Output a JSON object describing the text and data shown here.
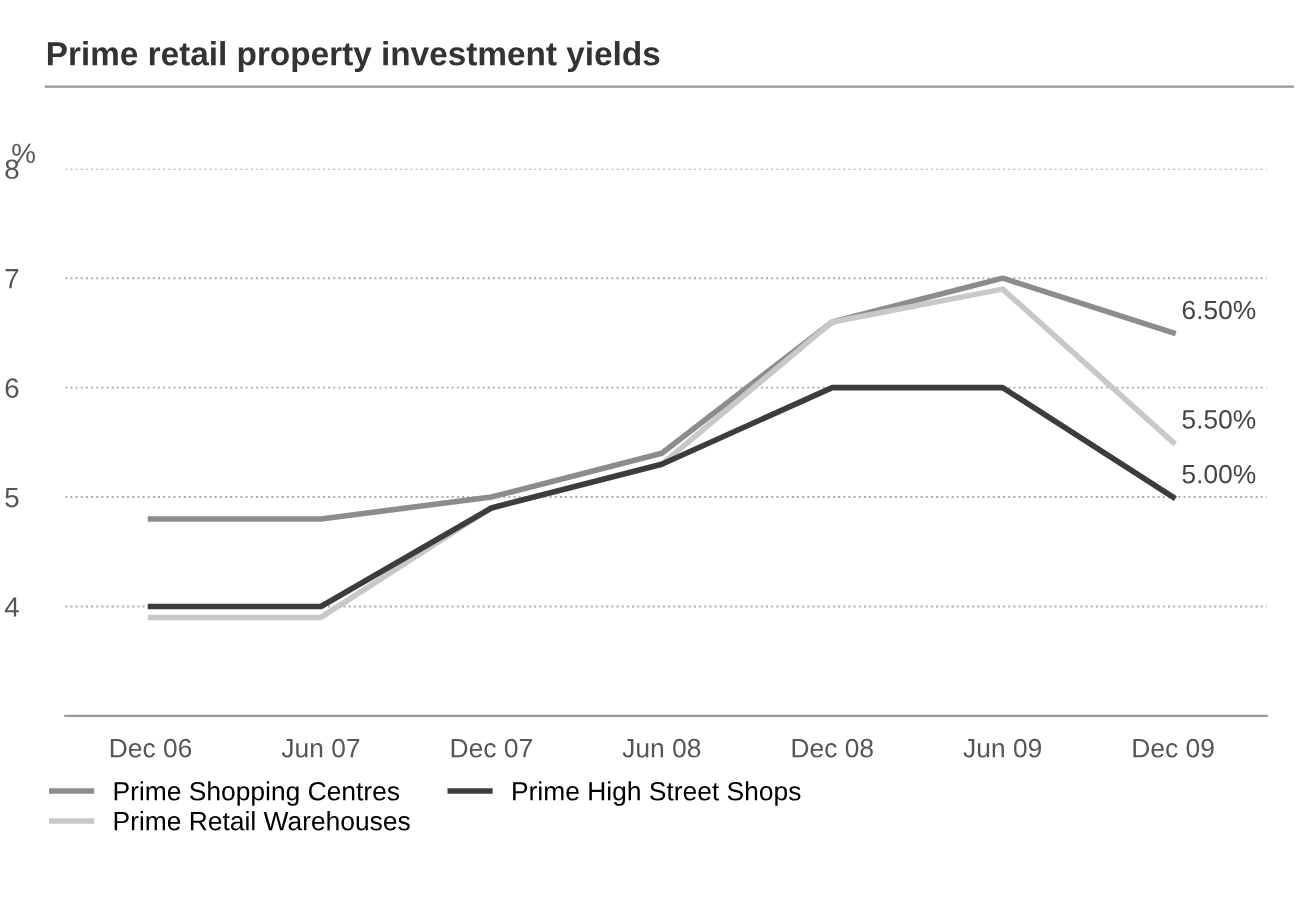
{
  "chart_data": {
    "type": "line",
    "title": "Prime retail property investment yields",
    "ylabel": "%",
    "categories": [
      "Dec 06",
      "Jun 07",
      "Dec 07",
      "Jun 08",
      "Dec 08",
      "Jun 09",
      "Dec 09"
    ],
    "series": [
      {
        "name": "Prime Shopping Centres",
        "color": "#8c8c8c",
        "values": [
          4.8,
          4.8,
          5.0,
          5.4,
          6.6,
          7.0,
          6.5
        ],
        "value_labels": [
          null,
          null,
          null,
          null,
          null,
          null,
          "6.50%"
        ]
      },
      {
        "name": "Prime Retail Warehouses",
        "color": "#c8c8c8",
        "values": [
          3.9,
          3.9,
          4.9,
          5.3,
          6.6,
          6.9,
          5.5
        ],
        "value_labels": [
          null,
          null,
          null,
          null,
          null,
          null,
          "5.50%"
        ]
      },
      {
        "name": "Prime High Street Shops",
        "color": "#3c3c3c",
        "values": [
          4.0,
          4.0,
          4.9,
          5.3,
          6.0,
          6.0,
          5.0
        ],
        "value_labels": [
          null,
          null,
          null,
          null,
          null,
          null,
          "5.00%"
        ]
      }
    ],
    "ylim": [
      3,
      8
    ],
    "yticks": [
      4,
      5,
      6,
      7,
      8
    ],
    "grid": "y",
    "legend": "bottom",
    "marker": "none",
    "line_style": "solid"
  }
}
